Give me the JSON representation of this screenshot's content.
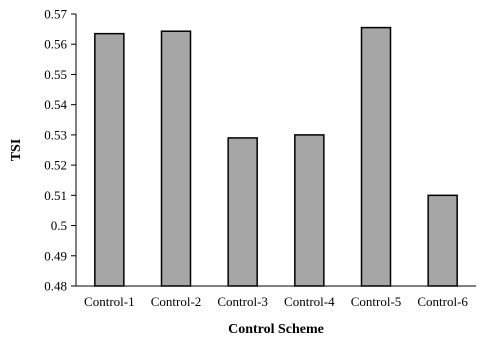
{
  "chart_data": {
    "type": "bar",
    "title": "",
    "xlabel": "Control Scheme",
    "ylabel": "TSI",
    "categories": [
      "Control-1",
      "Control-2",
      "Control-3",
      "Control-4",
      "Control-5",
      "Control-6"
    ],
    "values": [
      0.5635,
      0.5643,
      0.529,
      0.53,
      0.5655,
      0.51
    ],
    "ylim": [
      0.48,
      0.57
    ],
    "yticks": [
      "0.48",
      "0.49",
      "0.5",
      "0.51",
      "0.52",
      "0.53",
      "0.54",
      "0.55",
      "0.56",
      "0.57"
    ],
    "grid": false,
    "legend": false,
    "colors": {
      "bar_fill": "#a6a6a6",
      "bar_stroke": "#000000",
      "axis": "#000000",
      "text": "#000000"
    }
  }
}
